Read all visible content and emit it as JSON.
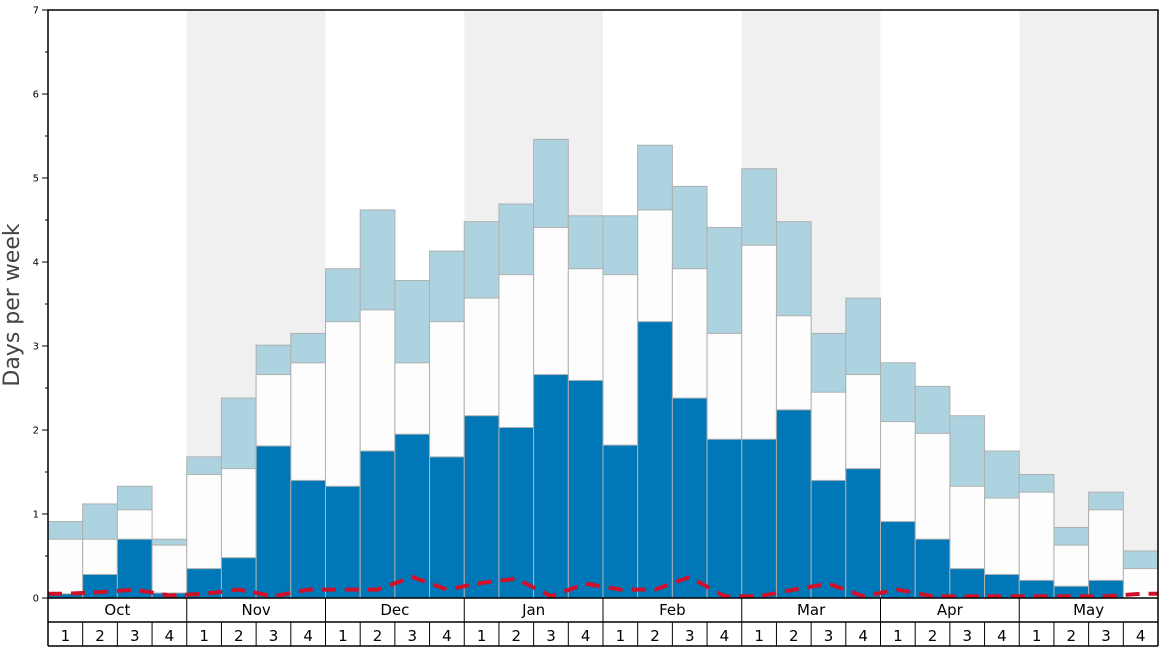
{
  "chart_data": {
    "type": "bar",
    "ylabel": "Days per week",
    "ylim": [
      0,
      7
    ],
    "yticks": [
      "0",
      "1",
      "2",
      "3",
      "4",
      "5",
      "6",
      "7"
    ],
    "months": [
      "Oct",
      "Nov",
      "Dec",
      "Jan",
      "Feb",
      "Mar",
      "Apr",
      "May"
    ],
    "week_labels": [
      "1",
      "2",
      "3",
      "4"
    ],
    "shaded_months": [
      "Nov",
      "Jan",
      "Mar",
      "May"
    ],
    "categories": [
      "Oct 1",
      "Oct 2",
      "Oct 3",
      "Oct 4",
      "Nov 1",
      "Nov 2",
      "Nov 3",
      "Nov 4",
      "Dec 1",
      "Dec 2",
      "Dec 3",
      "Dec 4",
      "Jan 1",
      "Jan 2",
      "Jan 3",
      "Jan 4",
      "Feb 1",
      "Feb 2",
      "Feb 3",
      "Feb 4",
      "Mar 1",
      "Mar 2",
      "Mar 3",
      "Mar 4",
      "Apr 1",
      "Apr 2",
      "Apr 3",
      "Apr 4",
      "May 1",
      "May 2",
      "May 3",
      "May 4"
    ],
    "series": [
      {
        "values": [
          0.05,
          0.28,
          0.7,
          0.06,
          0.35,
          0.48,
          1.81,
          1.4,
          1.33,
          1.75,
          1.95,
          1.68,
          2.17,
          2.03,
          2.66,
          2.59,
          1.82,
          3.29,
          2.38,
          1.89,
          1.89,
          2.24,
          1.4,
          1.54,
          0.91,
          0.7,
          0.35,
          0.28,
          0.21,
          0.14,
          0.21,
          0.0
        ]
      },
      {
        "values": [
          0.7,
          0.7,
          1.05,
          0.63,
          1.47,
          1.54,
          2.66,
          2.8,
          3.29,
          3.43,
          2.8,
          3.29,
          3.57,
          3.85,
          4.41,
          3.92,
          3.85,
          4.62,
          3.92,
          3.15,
          4.2,
          3.36,
          2.45,
          2.66,
          2.1,
          1.96,
          1.33,
          1.19,
          1.26,
          0.63,
          1.05,
          0.35
        ]
      },
      {
        "values": [
          0.91,
          1.12,
          1.33,
          0.7,
          1.68,
          2.38,
          3.01,
          3.15,
          3.92,
          4.62,
          3.78,
          4.13,
          4.48,
          4.69,
          5.46,
          4.55,
          4.55,
          5.39,
          4.9,
          4.41,
          5.11,
          4.48,
          3.15,
          3.57,
          2.8,
          2.52,
          2.17,
          1.75,
          1.47,
          0.84,
          1.26,
          0.56
        ]
      },
      {
        "values": [
          0.05,
          0.07,
          0.1,
          0.03,
          0.05,
          0.1,
          0.02,
          0.1,
          0.1,
          0.1,
          0.25,
          0.1,
          0.18,
          0.23,
          0.02,
          0.17,
          0.1,
          0.1,
          0.25,
          0.02,
          0.02,
          0.1,
          0.17,
          0.02,
          0.1,
          0.02,
          0.02,
          0.02,
          0.02,
          0.02,
          0.02,
          0.05
        ]
      }
    ],
    "colors": {
      "dark_bar": "#0077b6",
      "white_bar": "#fdfdfd",
      "light_bar": "#add3e0",
      "bar_edge": "#b0b0b0",
      "dashed_line": "#d0102a",
      "shade": "#f0f0f1",
      "frame": "#000000"
    },
    "grid": false,
    "legend": "none"
  }
}
